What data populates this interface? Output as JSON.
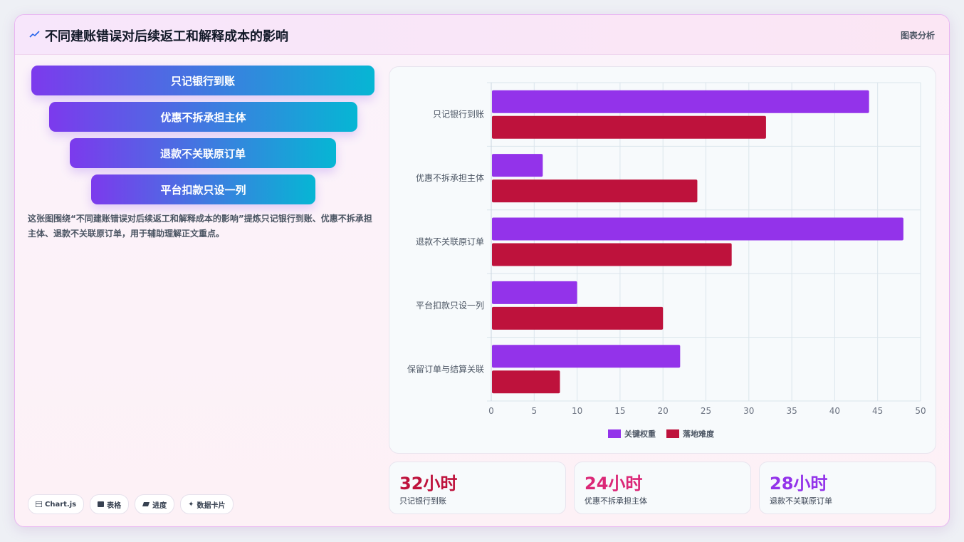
{
  "header": {
    "title": "不同建账错误对后续返工和解释成本的影响",
    "link": "图表分析",
    "icon": "trend-line-icon"
  },
  "funnel": [
    "只记银行到账",
    "优惠不拆承担主体",
    "退款不关联原订单",
    "平台扣款只设一列"
  ],
  "description": "这张图围绕“不同建账错误对后续返工和解释成本的影响”提炼只记银行到账、优惠不拆承担主体、退款不关联原订单，用于辅助理解正文重点。",
  "tags": [
    {
      "icon": "chart-icon",
      "label": "Chart.js"
    },
    {
      "icon": "table-icon",
      "label": "表格"
    },
    {
      "icon": "progress-icon",
      "label": "进度"
    },
    {
      "icon": "sparkle-icon",
      "label": "数据卡片"
    }
  ],
  "stats": [
    {
      "value": "32小时",
      "label": "只记银行到账",
      "color": "#be123c"
    },
    {
      "value": "24小时",
      "label": "优惠不拆承担主体",
      "color": "#db2777"
    },
    {
      "value": "28小时",
      "label": "退款不关联原订单",
      "color": "#9333ea"
    }
  ],
  "chart_data": {
    "type": "bar",
    "orientation": "horizontal",
    "categories": [
      "只记银行到账",
      "优惠不拆承担主体",
      "退款不关联原订单",
      "平台扣款只设一列",
      "保留订单与结算关联"
    ],
    "series": [
      {
        "name": "关键权重",
        "values": [
          44,
          6,
          48,
          10,
          22
        ],
        "color": "#9333ea"
      },
      {
        "name": "落地难度",
        "values": [
          32,
          24,
          28,
          20,
          8
        ],
        "color": "#be123c"
      }
    ],
    "xlim": [
      0,
      50
    ],
    "xticks": [
      0,
      5,
      10,
      15,
      20,
      25,
      30,
      35,
      40,
      45,
      50
    ],
    "grid": true,
    "legend": "bottom"
  }
}
